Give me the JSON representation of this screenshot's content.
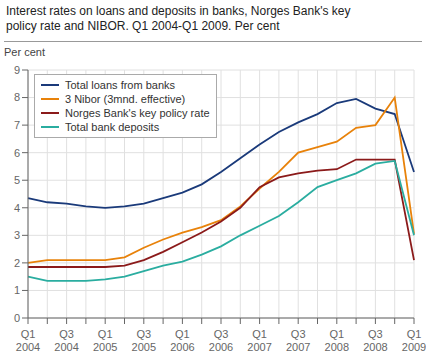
{
  "chart_data": {
    "type": "line",
    "title": "Interest rates on loans and deposits in banks, Norges Bank's key\npolicy rate and NIBOR. Q1 2004-Q1 2009. Per cent",
    "ylabel": "Per cent",
    "categories": [
      "Q1\n2004",
      null,
      "Q3\n2004",
      null,
      "Q1\n2005",
      null,
      "Q3\n2005",
      null,
      "Q1\n2006",
      null,
      "Q3\n2006",
      null,
      "Q1\n2007",
      null,
      "Q3\n2007",
      null,
      "Q1\n2008",
      null,
      "Q3\n2008",
      null,
      "Q1\n2009"
    ],
    "series": [
      {
        "name": "Total loans from banks",
        "color": "#1a3a7a",
        "values": [
          4.35,
          4.2,
          4.15,
          4.05,
          4.0,
          4.05,
          4.15,
          4.35,
          4.55,
          4.85,
          5.3,
          5.8,
          6.3,
          6.75,
          7.1,
          7.4,
          7.8,
          7.95,
          7.6,
          7.4,
          5.3
        ]
      },
      {
        "name": "3 Nibor (3mnd. effective)",
        "color": "#e8820a",
        "values": [
          2.0,
          2.1,
          2.1,
          2.1,
          2.1,
          2.2,
          2.55,
          2.85,
          3.1,
          3.3,
          3.55,
          4.05,
          4.7,
          5.3,
          6.0,
          6.2,
          6.4,
          6.9,
          7.0,
          8.0,
          3.05
        ]
      },
      {
        "name": "Norges Bank's key policy rate",
        "color": "#8b1a1a",
        "values": [
          1.85,
          1.85,
          1.85,
          1.85,
          1.85,
          1.9,
          2.1,
          2.4,
          2.75,
          3.1,
          3.5,
          4.0,
          4.75,
          5.1,
          5.25,
          5.35,
          5.4,
          5.75,
          5.75,
          5.75,
          2.1
        ]
      },
      {
        "name": "Total bank deposits",
        "color": "#2aada0",
        "values": [
          1.5,
          1.35,
          1.35,
          1.35,
          1.4,
          1.5,
          1.7,
          1.9,
          2.05,
          2.3,
          2.6,
          3.0,
          3.35,
          3.7,
          4.2,
          4.75,
          5.0,
          5.25,
          5.6,
          5.7,
          3.0
        ]
      }
    ],
    "ylim": [
      0,
      9
    ],
    "yticks": [
      0,
      1,
      2,
      3,
      4,
      5,
      6,
      7,
      8,
      9
    ],
    "grid": true,
    "legend": "upper left"
  }
}
